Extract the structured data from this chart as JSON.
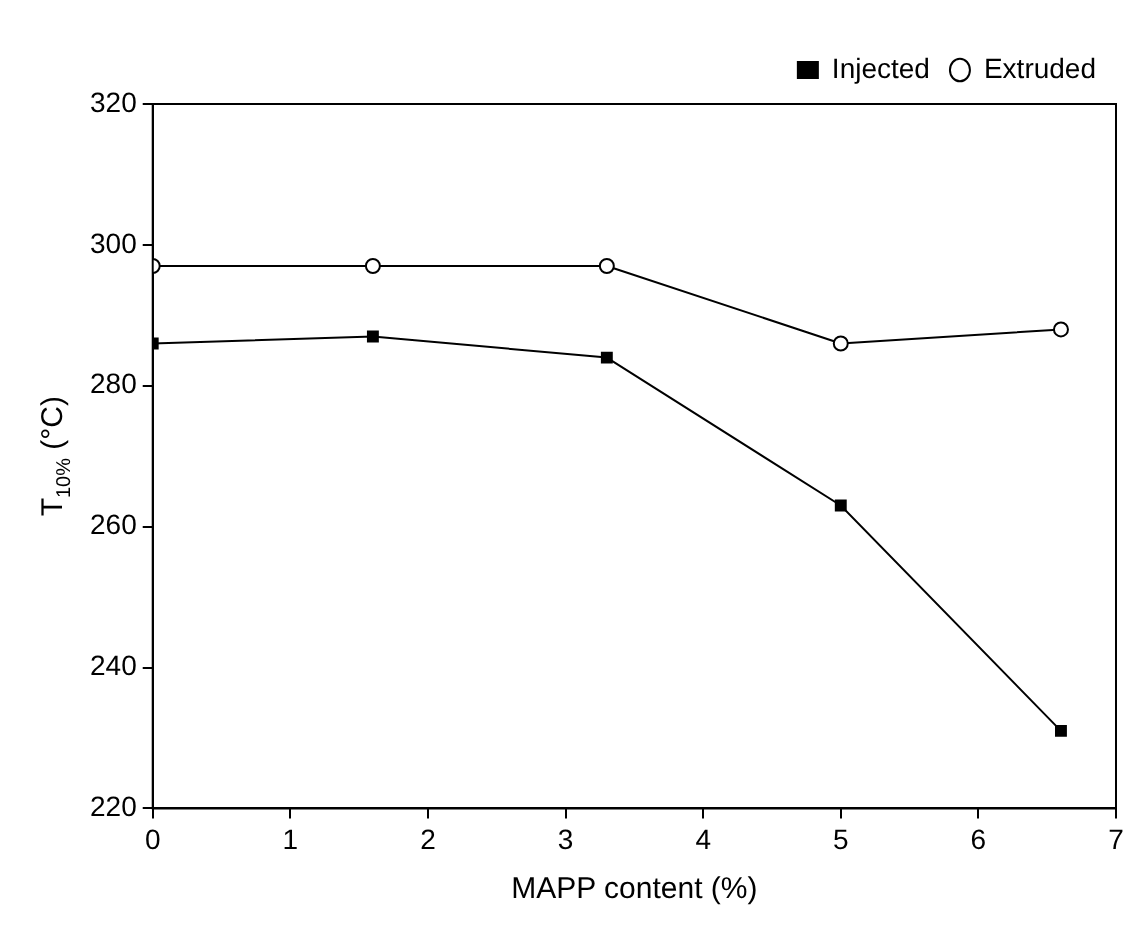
{
  "chart_data": {
    "type": "line",
    "xlabel": "MAPP content (%)",
    "ylabel": "T$_{10%}$ (°C)",
    "x": [
      0,
      1.6,
      3.3,
      5,
      6.6
    ],
    "series": [
      {
        "name": "Injected",
        "color": "#000000",
        "values": [
          286,
          287,
          284,
          263,
          231
        ],
        "marker": "square"
      },
      {
        "name": "Extruded",
        "color": "#000000",
        "values": [
          297,
          297,
          297,
          286,
          288
        ],
        "marker": "circle"
      }
    ],
    "xlim": [
      0,
      7
    ],
    "xticks": [
      0,
      1,
      2,
      3,
      4,
      5,
      6,
      7
    ],
    "ylim": [
      220,
      320
    ],
    "yticks": [
      220,
      240,
      260,
      280,
      300,
      320
    ],
    "grid": false,
    "legend": "top right",
    "line_style": "solid"
  }
}
